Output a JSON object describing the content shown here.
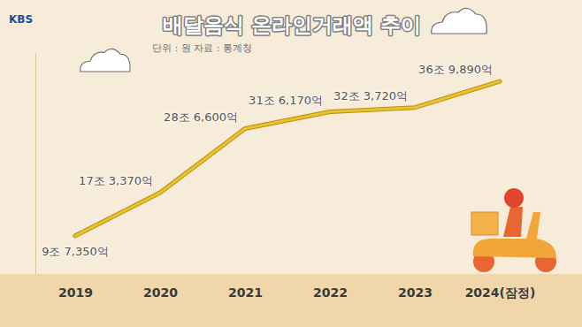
{
  "chart_data": {
    "type": "line",
    "title": "배달음식 온라인거래액 추이",
    "subtitle": "단위 : 원   자료 : 통계청",
    "logo": "KBS",
    "categories": [
      "2019",
      "2020",
      "2021",
      "2022",
      "2023",
      "2024(잠정)"
    ],
    "values": [
      97350,
      173370,
      286600,
      316170,
      323720,
      369890
    ],
    "value_labels": [
      "9조 7,350억",
      "17조 3,370억",
      "28조 6,600억",
      "31조 6,170억",
      "32조 3,720억",
      "36조 9,890억"
    ],
    "color": "#e8c42c",
    "ylim": [
      30000,
      420000
    ],
    "data_labels": true,
    "tick_labels": "x",
    "grid": false
  }
}
